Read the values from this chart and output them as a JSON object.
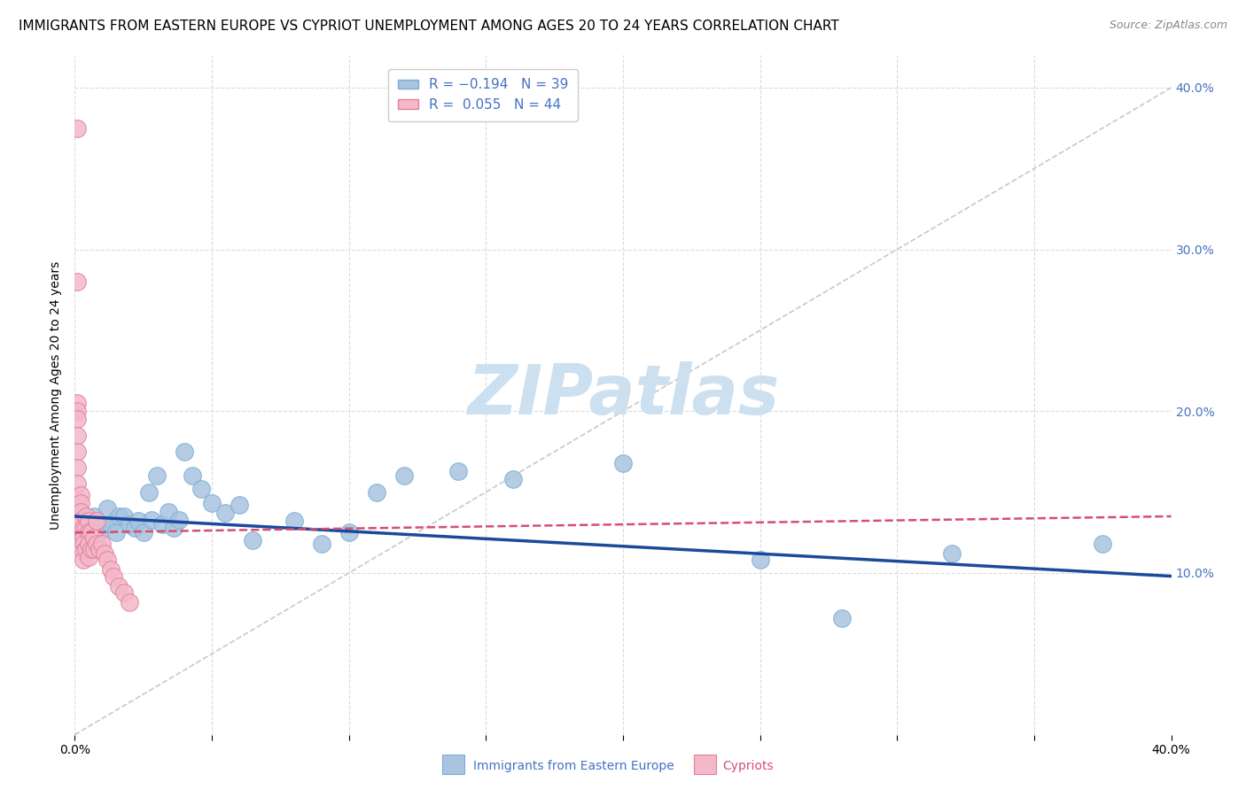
{
  "title": "IMMIGRANTS FROM EASTERN EUROPE VS CYPRIOT UNEMPLOYMENT AMONG AGES 20 TO 24 YEARS CORRELATION CHART",
  "source": "Source: ZipAtlas.com",
  "ylabel": "Unemployment Among Ages 20 to 24 years",
  "xlim": [
    0.0,
    0.4
  ],
  "ylim": [
    0.0,
    0.42
  ],
  "legend_label_color": "#4472c4",
  "blue_color": "#a8c4e0",
  "blue_edge": "#7bafd4",
  "blue_trend_color": "#1a4a9c",
  "pink_color": "#f4b8c8",
  "pink_edge": "#e080a0",
  "pink_trend_color": "#d45070",
  "diag_color": "#c8c8c8",
  "grid_color": "#d8d8d8",
  "axis_color": "#4472c4",
  "watermark": "ZIPatlas",
  "watermark_color": "#cce0f0",
  "background_color": "#ffffff",
  "title_fontsize": 11,
  "source_fontsize": 9,
  "blue_x": [
    0.005,
    0.007,
    0.009,
    0.01,
    0.012,
    0.013,
    0.015,
    0.016,
    0.018,
    0.02,
    0.022,
    0.023,
    0.025,
    0.027,
    0.028,
    0.03,
    0.032,
    0.034,
    0.036,
    0.038,
    0.04,
    0.043,
    0.046,
    0.05,
    0.055,
    0.06,
    0.065,
    0.08,
    0.09,
    0.1,
    0.11,
    0.12,
    0.14,
    0.16,
    0.2,
    0.25,
    0.28,
    0.32,
    0.375
  ],
  "blue_y": [
    0.13,
    0.135,
    0.125,
    0.13,
    0.14,
    0.13,
    0.125,
    0.135,
    0.135,
    0.13,
    0.128,
    0.132,
    0.125,
    0.15,
    0.133,
    0.16,
    0.13,
    0.138,
    0.128,
    0.133,
    0.175,
    0.16,
    0.152,
    0.143,
    0.137,
    0.142,
    0.12,
    0.132,
    0.118,
    0.125,
    0.15,
    0.16,
    0.163,
    0.158,
    0.168,
    0.108,
    0.072,
    0.112,
    0.118
  ],
  "pink_x": [
    0.001,
    0.001,
    0.001,
    0.001,
    0.001,
    0.001,
    0.001,
    0.001,
    0.001,
    0.001,
    0.001,
    0.002,
    0.002,
    0.002,
    0.002,
    0.002,
    0.002,
    0.003,
    0.003,
    0.003,
    0.003,
    0.003,
    0.004,
    0.004,
    0.004,
    0.005,
    0.005,
    0.005,
    0.005,
    0.006,
    0.006,
    0.007,
    0.007,
    0.008,
    0.008,
    0.009,
    0.01,
    0.011,
    0.012,
    0.013,
    0.014,
    0.016,
    0.018,
    0.02
  ],
  "pink_y": [
    0.375,
    0.28,
    0.205,
    0.2,
    0.195,
    0.185,
    0.175,
    0.165,
    0.155,
    0.145,
    0.135,
    0.148,
    0.143,
    0.138,
    0.132,
    0.125,
    0.12,
    0.128,
    0.122,
    0.118,
    0.113,
    0.108,
    0.135,
    0.128,
    0.115,
    0.132,
    0.125,
    0.118,
    0.11,
    0.125,
    0.115,
    0.122,
    0.115,
    0.132,
    0.118,
    0.115,
    0.118,
    0.112,
    0.108,
    0.102,
    0.098,
    0.092,
    0.088,
    0.082
  ],
  "blue_trend_x0": 0.0,
  "blue_trend_x1": 0.4,
  "blue_trend_y0": 0.135,
  "blue_trend_y1": 0.098,
  "pink_trend_x0": 0.0,
  "pink_trend_x1": 0.4,
  "pink_trend_y0": 0.125,
  "pink_trend_y1": 0.135
}
